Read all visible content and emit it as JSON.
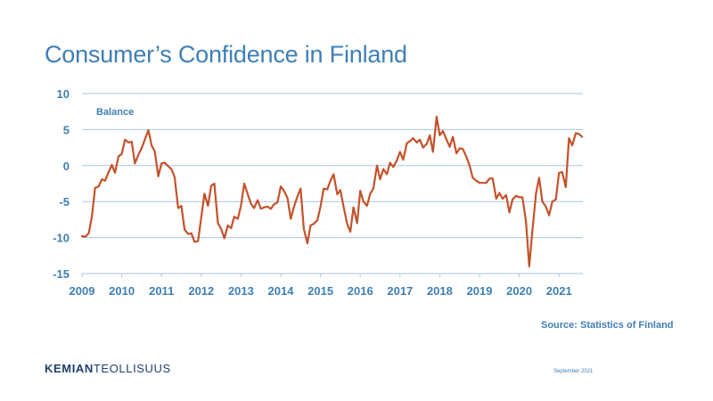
{
  "slide": {
    "title": "Consumer’s Confidence in Finland",
    "source": "Source: Statistics of Finland",
    "logo_bold": "KEMIAN",
    "logo_regular": "TEOLLISUUS",
    "date": "September 2021"
  },
  "colors": {
    "title": "#3f7fb5",
    "axis_text": "#3f7fb5",
    "line": "#c4522a",
    "grid": "#a9c6e0",
    "logo": "#1f3e6c"
  },
  "chart_data": {
    "type": "line",
    "title": "",
    "xlabel": "",
    "ylabel": "",
    "annotation": "Balance",
    "xlim": [
      2009,
      2021.6
    ],
    "ylim": [
      -15,
      10
    ],
    "yticks": [
      -15,
      -10,
      -5,
      0,
      5,
      10
    ],
    "xticks": [
      "2009",
      "2010",
      "2011",
      "2012",
      "2013",
      "2014",
      "2015",
      "2016",
      "2017",
      "2018",
      "2019",
      "2020",
      "2021"
    ],
    "grid": "horizontal",
    "legend": "none",
    "series": [
      {
        "x": [
          2009.0,
          2009.08,
          2009.17,
          2009.25,
          2009.33,
          2009.42,
          2009.5,
          2009.58,
          2009.67,
          2009.75,
          2009.83,
          2009.92,
          2010.0,
          2010.08,
          2010.17,
          2010.25,
          2010.33,
          2010.42,
          2010.5,
          2010.58,
          2010.67,
          2010.75,
          2010.83,
          2010.92,
          2011.0,
          2011.08,
          2011.17,
          2011.25,
          2011.33,
          2011.42,
          2011.5,
          2011.58,
          2011.67,
          2011.75,
          2011.83,
          2011.92,
          2012.0,
          2012.08,
          2012.17,
          2012.25,
          2012.33,
          2012.42,
          2012.5,
          2012.58,
          2012.67,
          2012.75,
          2012.83,
          2012.92,
          2013.0,
          2013.08,
          2013.17,
          2013.25,
          2013.33,
          2013.42,
          2013.5,
          2013.58,
          2013.67,
          2013.75,
          2013.83,
          2013.92,
          2014.0,
          2014.08,
          2014.17,
          2014.25,
          2014.33,
          2014.42,
          2014.5,
          2014.58,
          2014.67,
          2014.75,
          2014.83,
          2014.92,
          2015.0,
          2015.08,
          2015.17,
          2015.25,
          2015.33,
          2015.42,
          2015.5,
          2015.58,
          2015.67,
          2015.75,
          2015.83,
          2015.92,
          2016.0,
          2016.08,
          2016.17,
          2016.25,
          2016.33,
          2016.42,
          2016.5,
          2016.58,
          2016.67,
          2016.75,
          2016.83,
          2016.92,
          2017.0,
          2017.08,
          2017.17,
          2017.25,
          2017.33,
          2017.42,
          2017.5,
          2017.58,
          2017.67,
          2017.75,
          2017.83,
          2017.92,
          2018.0,
          2018.08,
          2018.17,
          2018.25,
          2018.33,
          2018.42,
          2018.5,
          2018.58,
          2018.67,
          2018.75,
          2018.83,
          2018.92,
          2019.0,
          2019.08,
          2019.17,
          2019.25,
          2019.33,
          2019.42,
          2019.5,
          2019.58,
          2019.67,
          2019.75,
          2019.83,
          2019.92,
          2020.0,
          2020.08,
          2020.17,
          2020.25,
          2020.33,
          2020.42,
          2020.5,
          2020.58,
          2020.67,
          2020.75,
          2020.83,
          2020.92,
          2021.0,
          2021.08,
          2021.17,
          2021.25,
          2021.33,
          2021.42,
          2021.5,
          2021.58
        ],
        "y": [
          -9.8,
          -9.9,
          -9.4,
          -7.0,
          -3.1,
          -2.9,
          -1.9,
          -2.1,
          -0.9,
          0.1,
          -1.0,
          1.3,
          1.6,
          3.6,
          3.2,
          3.3,
          0.3,
          1.5,
          2.4,
          3.6,
          4.9,
          2.8,
          2.0,
          -1.5,
          0.3,
          0.4,
          -0.1,
          -0.5,
          -1.6,
          -5.9,
          -5.6,
          -8.9,
          -9.5,
          -9.4,
          -10.6,
          -10.5,
          -7.2,
          -3.9,
          -5.6,
          -2.8,
          -2.5,
          -8.0,
          -8.8,
          -10.1,
          -8.3,
          -8.7,
          -7.1,
          -7.4,
          -5.6,
          -2.5,
          -4.0,
          -5.3,
          -5.9,
          -4.8,
          -6.0,
          -5.8,
          -5.7,
          -6.0,
          -5.4,
          -5.1,
          -2.9,
          -3.5,
          -4.5,
          -7.4,
          -5.8,
          -4.3,
          -3.2,
          -8.8,
          -10.8,
          -8.3,
          -8.1,
          -7.6,
          -5.7,
          -3.2,
          -3.3,
          -2.1,
          -1.2,
          -4.0,
          -3.4,
          -5.7,
          -8.1,
          -9.2,
          -5.8,
          -8.0,
          -3.5,
          -5.0,
          -5.6,
          -3.9,
          -3.2,
          0.0,
          -1.9,
          -0.5,
          -1.2,
          0.4,
          -0.2,
          0.7,
          1.9,
          0.8,
          3.1,
          3.4,
          3.8,
          3.2,
          3.6,
          2.5,
          3.0,
          4.2,
          1.9,
          6.8,
          4.2,
          4.8,
          3.6,
          2.6,
          4.0,
          1.7,
          2.4,
          2.3,
          1.2,
          0.0,
          -1.7,
          -2.1,
          -2.4,
          -2.4,
          -2.4,
          -1.8,
          -1.8,
          -4.6,
          -3.8,
          -4.6,
          -4.1,
          -6.5,
          -4.7,
          -4.2,
          -4.4,
          -4.4,
          -7.8,
          -14.0,
          -9.0,
          -3.9,
          -1.7,
          -5.0,
          -5.7,
          -6.9,
          -5.0,
          -4.7,
          -1.0,
          -0.9,
          -3.0,
          3.8,
          2.8,
          4.5,
          4.4,
          4.0
        ]
      }
    ]
  }
}
